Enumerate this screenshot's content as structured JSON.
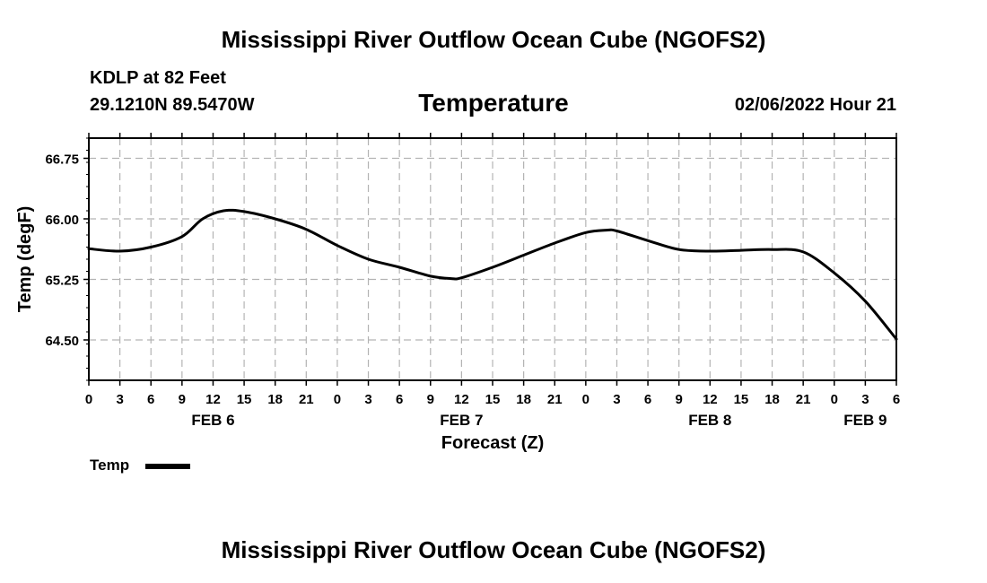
{
  "header": {
    "title": "Mississippi River Outflow Ocean Cube (NGOFS2)",
    "station": "KDLP at 82 Feet",
    "coordinates": "29.1210N  89.5470W",
    "parameter": "Temperature",
    "timestamp": "02/06/2022 Hour 21"
  },
  "footer": {
    "title": "Mississippi River Outflow Ocean Cube (NGOFS2)"
  },
  "legend": {
    "label": "Temp",
    "color": "#000000"
  },
  "chart_data": {
    "type": "line",
    "title": "Temperature",
    "xlabel": "Forecast (Z)",
    "ylabel": "Temp (degF)",
    "xlim": [
      0,
      78
    ],
    "ylim": [
      64.0,
      67.0
    ],
    "grid": true,
    "legend_position": "bottom-left",
    "y_ticks": [
      64.5,
      65.25,
      66.0,
      66.75
    ],
    "y_tick_labels": [
      "64.50",
      "65.25",
      "66.00",
      "66.75"
    ],
    "x_ticks": [
      0,
      3,
      6,
      9,
      12,
      15,
      18,
      21,
      24,
      27,
      30,
      33,
      36,
      39,
      42,
      45,
      48,
      51,
      54,
      57,
      60,
      63,
      66,
      69,
      72,
      75,
      78
    ],
    "x_tick_labels": [
      "0",
      "3",
      "6",
      "9",
      "12",
      "15",
      "18",
      "21",
      "0",
      "3",
      "6",
      "9",
      "12",
      "15",
      "18",
      "21",
      "0",
      "3",
      "6",
      "9",
      "12",
      "15",
      "18",
      "21",
      "0",
      "3",
      "6"
    ],
    "day_labels": [
      {
        "x": 12,
        "label": "FEB 6"
      },
      {
        "x": 36,
        "label": "FEB 7"
      },
      {
        "x": 60,
        "label": "FEB 8"
      },
      {
        "x": 75,
        "label": "FEB 9"
      }
    ],
    "series": [
      {
        "name": "Temp",
        "color": "#000000",
        "x": [
          0,
          3,
          6,
          9,
          11,
          13,
          15,
          18,
          21,
          24,
          27,
          30,
          33,
          35,
          36,
          39,
          42,
          45,
          48,
          50,
          51,
          54,
          57,
          60,
          63,
          66,
          69,
          72,
          75,
          78
        ],
        "y": [
          65.63,
          65.6,
          65.65,
          65.78,
          66.0,
          66.1,
          66.09,
          66.0,
          65.87,
          65.67,
          65.5,
          65.4,
          65.29,
          65.26,
          65.27,
          65.4,
          65.55,
          65.7,
          65.83,
          65.86,
          65.85,
          65.73,
          65.62,
          65.6,
          65.61,
          65.62,
          65.59,
          65.33,
          64.98,
          64.51
        ]
      }
    ]
  }
}
